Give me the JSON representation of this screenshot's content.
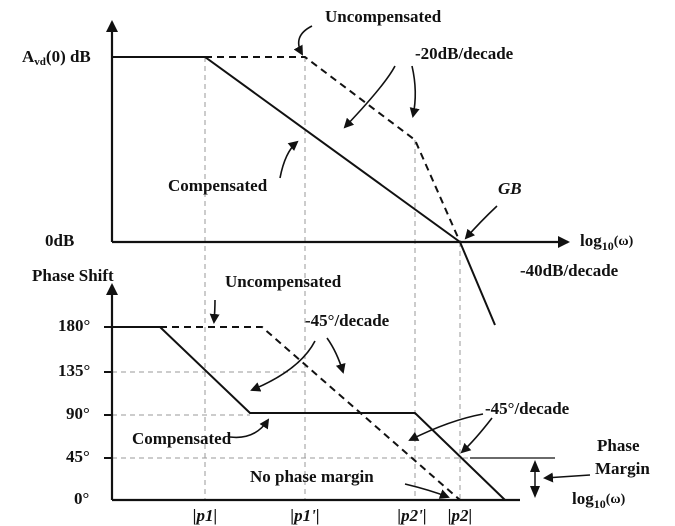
{
  "magnitude_plot": {
    "y_label_main": "A",
    "y_label_sub": "vd",
    "y_label_rest": "(0) dB",
    "zero_label": "0dB",
    "x_label": {
      "base": "log",
      "sub": "10",
      "arg": "(ω)"
    },
    "annotations": {
      "uncompensated": "Uncompensated",
      "slope_20": "-20dB/decade",
      "compensated": "Compensated",
      "gb": "GB",
      "slope_40": "-40dB/decade"
    }
  },
  "phase_plot": {
    "y_label": "Phase Shift",
    "y_ticks": [
      "180°",
      "135°",
      "90°",
      "45°",
      "0°"
    ],
    "x_label": {
      "base": "log",
      "sub": "10",
      "arg": "(ω)"
    },
    "x_ticks": [
      "|p1|",
      "|p1'|",
      "|p2'|",
      "|p2|"
    ],
    "annotations": {
      "uncompensated": "Uncompensated",
      "slope_45_top": "-45°/decade",
      "slope_45_bottom": "-45°/decade",
      "compensated": "Compensated",
      "no_phase_margin": "No phase margin",
      "phase_margin_1": "Phase",
      "phase_margin_2": "Margin"
    }
  }
}
